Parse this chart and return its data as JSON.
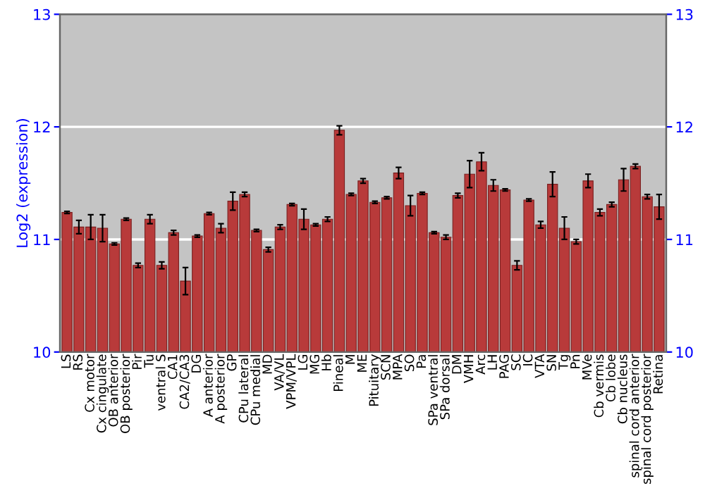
{
  "chart_data": {
    "type": "bar",
    "ylabel": "Log2 (expression)",
    "categories": [
      "LS",
      "RS",
      "Cx motor",
      "Cx cingulate",
      "OB anterior",
      "OB posterior",
      "Pir",
      "Tu",
      "ventral S",
      "CA1",
      "CA2/CA3",
      "DG",
      "A anterior",
      "A posterior",
      "GP",
      "CPu lateral",
      "CPu medial",
      "MD",
      "VA/VL",
      "VPM/VPL",
      "LG",
      "MG",
      "Hb",
      "Pineal",
      "M",
      "ME",
      "Pituitary",
      "SCN",
      "MPA",
      "SO",
      "Pa",
      "SPa ventral",
      "SPa dorsal",
      "DM",
      "VMH",
      "Arc",
      "LH",
      "PAG",
      "SC",
      "IC",
      "VTA",
      "SN",
      "Tg",
      "Pn",
      "MVe",
      "Cb vermis",
      "Cb lobe",
      "Cb nucleus",
      "spinal cord anterior",
      "spinal cord posterior",
      "Retina"
    ],
    "values": [
      11.24,
      11.11,
      11.11,
      11.1,
      10.96,
      11.18,
      10.77,
      11.18,
      10.77,
      11.06,
      10.63,
      11.03,
      11.23,
      11.1,
      11.34,
      11.4,
      11.08,
      10.91,
      11.11,
      11.31,
      11.18,
      11.13,
      11.18,
      11.97,
      11.4,
      11.52,
      11.33,
      11.37,
      11.59,
      11.3,
      11.41,
      11.06,
      11.02,
      11.39,
      11.58,
      11.69,
      11.48,
      11.44,
      10.77,
      11.35,
      11.13,
      11.49,
      11.1,
      10.98,
      11.52,
      11.24,
      11.31,
      11.53,
      11.65,
      11.38,
      11.29
    ],
    "errors": [
      0.01,
      0.06,
      0.11,
      0.12,
      0.01,
      0.01,
      0.02,
      0.04,
      0.03,
      0.02,
      0.12,
      0.01,
      0.01,
      0.04,
      0.08,
      0.02,
      0.01,
      0.02,
      0.02,
      0.01,
      0.09,
      0.01,
      0.02,
      0.04,
      0.01,
      0.02,
      0.01,
      0.01,
      0.05,
      0.09,
      0.01,
      0.01,
      0.02,
      0.02,
      0.12,
      0.08,
      0.05,
      0.01,
      0.04,
      0.01,
      0.03,
      0.11,
      0.1,
      0.02,
      0.06,
      0.03,
      0.02,
      0.1,
      0.02,
      0.02,
      0.11
    ],
    "color": "#b83a3a",
    "ylim": [
      10,
      13
    ],
    "yticks": [
      10,
      11,
      12,
      13
    ],
    "y2lim": [
      10,
      13
    ],
    "y2ticks": [
      10,
      11,
      12,
      13
    ],
    "grid": "y"
  }
}
